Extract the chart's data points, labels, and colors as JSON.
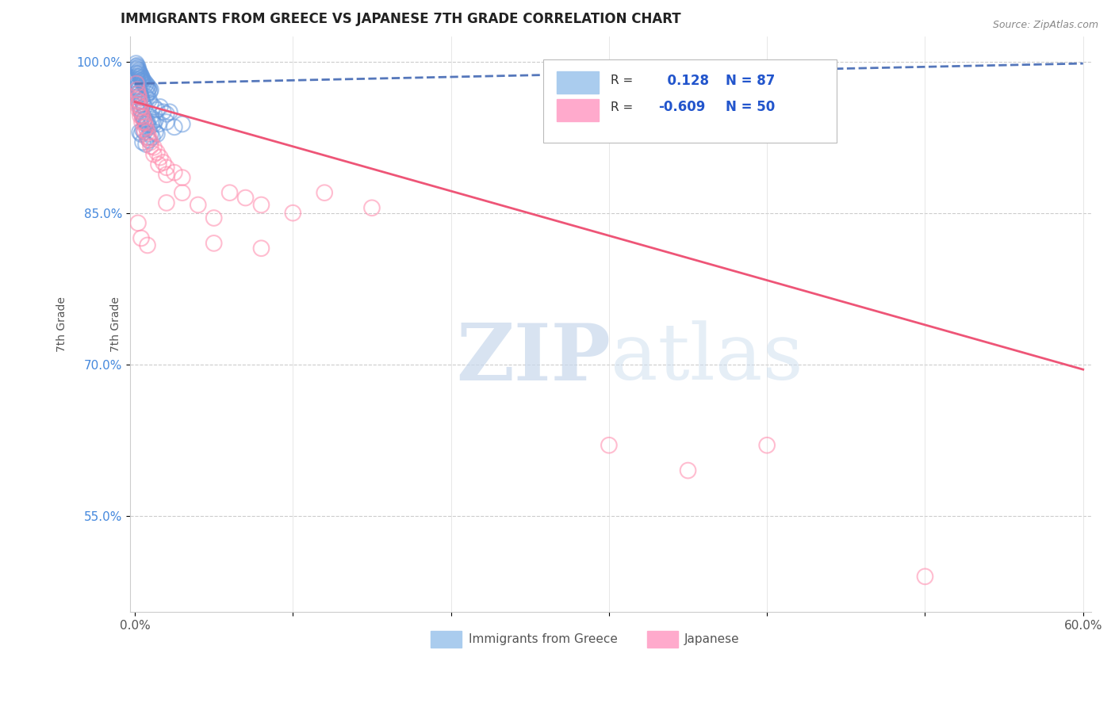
{
  "title": "IMMIGRANTS FROM GREECE VS JAPANESE 7TH GRADE CORRELATION CHART",
  "source": "Source: ZipAtlas.com",
  "ylabel": "7th Grade",
  "legend_label1": "Immigrants from Greece",
  "legend_label2": "Japanese",
  "R1": 0.128,
  "N1": 87,
  "R2": -0.609,
  "N2": 50,
  "xlim": [
    -0.003,
    0.605
  ],
  "ylim": [
    0.455,
    1.025
  ],
  "xtick_labels": [
    "0.0%",
    "",
    "",
    "",
    "",
    "",
    "60.0%"
  ],
  "xtick_vals": [
    0.0,
    0.1,
    0.2,
    0.3,
    0.4,
    0.5,
    0.6
  ],
  "ytick_labels": [
    "55.0%",
    "70.0%",
    "85.0%",
    "100.0%"
  ],
  "ytick_vals": [
    0.55,
    0.7,
    0.85,
    1.0
  ],
  "color_blue_line": "#5577BB",
  "color_pink_line": "#EE5577",
  "color_blue_scatter": "#6699DD",
  "color_pink_scatter": "#FF88AA",
  "trendline1_x": [
    0.0,
    0.6
  ],
  "trendline1_y": [
    0.978,
    0.998
  ],
  "trendline2_x": [
    0.0,
    0.6
  ],
  "trendline2_y": [
    0.96,
    0.695
  ],
  "watermark_zip": "ZIP",
  "watermark_atlas": "atlas",
  "blue_points": [
    [
      0.0008,
      0.998
    ],
    [
      0.001,
      0.995
    ],
    [
      0.0012,
      0.993
    ],
    [
      0.0015,
      0.996
    ],
    [
      0.0018,
      0.992
    ],
    [
      0.002,
      0.994
    ],
    [
      0.0022,
      0.99
    ],
    [
      0.0025,
      0.991
    ],
    [
      0.0028,
      0.988
    ],
    [
      0.003,
      0.989
    ],
    [
      0.0032,
      0.985
    ],
    [
      0.0035,
      0.987
    ],
    [
      0.0038,
      0.983
    ],
    [
      0.004,
      0.986
    ],
    [
      0.0042,
      0.981
    ],
    [
      0.0045,
      0.984
    ],
    [
      0.0048,
      0.98
    ],
    [
      0.005,
      0.982
    ],
    [
      0.0055,
      0.978
    ],
    [
      0.006,
      0.98
    ],
    [
      0.0065,
      0.976
    ],
    [
      0.007,
      0.978
    ],
    [
      0.0075,
      0.974
    ],
    [
      0.008,
      0.976
    ],
    [
      0.0085,
      0.972
    ],
    [
      0.009,
      0.974
    ],
    [
      0.0095,
      0.97
    ],
    [
      0.01,
      0.972
    ],
    [
      0.001,
      0.988
    ],
    [
      0.0013,
      0.985
    ],
    [
      0.0016,
      0.982
    ],
    [
      0.0019,
      0.979
    ],
    [
      0.0023,
      0.976
    ],
    [
      0.0027,
      0.973
    ],
    [
      0.0031,
      0.97
    ],
    [
      0.0036,
      0.967
    ],
    [
      0.0041,
      0.964
    ],
    [
      0.0047,
      0.961
    ],
    [
      0.0053,
      0.958
    ],
    [
      0.006,
      0.955
    ],
    [
      0.007,
      0.965
    ],
    [
      0.008,
      0.968
    ],
    [
      0.009,
      0.962
    ],
    [
      0.01,
      0.958
    ],
    [
      0.012,
      0.955
    ],
    [
      0.014,
      0.952
    ],
    [
      0.016,
      0.955
    ],
    [
      0.018,
      0.95
    ],
    [
      0.02,
      0.948
    ],
    [
      0.022,
      0.95
    ],
    [
      0.005,
      0.945
    ],
    [
      0.006,
      0.942
    ],
    [
      0.007,
      0.938
    ],
    [
      0.008,
      0.94
    ],
    [
      0.01,
      0.945
    ],
    [
      0.012,
      0.938
    ],
    [
      0.0015,
      0.975
    ],
    [
      0.0017,
      0.972
    ],
    [
      0.0019,
      0.968
    ],
    [
      0.0021,
      0.965
    ],
    [
      0.0025,
      0.96
    ],
    [
      0.003,
      0.957
    ],
    [
      0.0035,
      0.953
    ],
    [
      0.004,
      0.95
    ],
    [
      0.005,
      0.946
    ],
    [
      0.006,
      0.943
    ],
    [
      0.007,
      0.94
    ],
    [
      0.008,
      0.938
    ],
    [
      0.009,
      0.935
    ],
    [
      0.011,
      0.94
    ],
    [
      0.013,
      0.942
    ],
    [
      0.015,
      0.938
    ],
    [
      0.003,
      0.93
    ],
    [
      0.004,
      0.928
    ],
    [
      0.005,
      0.932
    ],
    [
      0.006,
      0.93
    ],
    [
      0.008,
      0.925
    ],
    [
      0.01,
      0.928
    ],
    [
      0.013,
      0.93
    ],
    [
      0.005,
      0.92
    ],
    [
      0.007,
      0.918
    ],
    [
      0.009,
      0.922
    ],
    [
      0.011,
      0.925
    ],
    [
      0.014,
      0.928
    ],
    [
      0.02,
      0.94
    ],
    [
      0.025,
      0.935
    ],
    [
      0.03,
      0.938
    ]
  ],
  "pink_points": [
    [
      0.001,
      0.978
    ],
    [
      0.0015,
      0.972
    ],
    [
      0.002,
      0.968
    ],
    [
      0.0025,
      0.965
    ],
    [
      0.003,
      0.96
    ],
    [
      0.0035,
      0.955
    ],
    [
      0.004,
      0.95
    ],
    [
      0.005,
      0.945
    ],
    [
      0.006,
      0.94
    ],
    [
      0.007,
      0.935
    ],
    [
      0.008,
      0.93
    ],
    [
      0.009,
      0.925
    ],
    [
      0.01,
      0.92
    ],
    [
      0.012,
      0.915
    ],
    [
      0.014,
      0.91
    ],
    [
      0.016,
      0.905
    ],
    [
      0.018,
      0.9
    ],
    [
      0.02,
      0.895
    ],
    [
      0.025,
      0.89
    ],
    [
      0.03,
      0.885
    ],
    [
      0.0012,
      0.962
    ],
    [
      0.0018,
      0.957
    ],
    [
      0.0025,
      0.952
    ],
    [
      0.0035,
      0.946
    ],
    [
      0.0045,
      0.94
    ],
    [
      0.006,
      0.932
    ],
    [
      0.008,
      0.924
    ],
    [
      0.01,
      0.916
    ],
    [
      0.012,
      0.908
    ],
    [
      0.015,
      0.898
    ],
    [
      0.02,
      0.888
    ],
    [
      0.03,
      0.87
    ],
    [
      0.04,
      0.858
    ],
    [
      0.05,
      0.845
    ],
    [
      0.06,
      0.87
    ],
    [
      0.07,
      0.865
    ],
    [
      0.08,
      0.858
    ],
    [
      0.1,
      0.85
    ],
    [
      0.12,
      0.87
    ],
    [
      0.15,
      0.855
    ],
    [
      0.002,
      0.84
    ],
    [
      0.004,
      0.825
    ],
    [
      0.008,
      0.818
    ],
    [
      0.02,
      0.86
    ],
    [
      0.05,
      0.82
    ],
    [
      0.08,
      0.815
    ],
    [
      0.3,
      0.62
    ],
    [
      0.35,
      0.595
    ],
    [
      0.4,
      0.62
    ],
    [
      0.5,
      0.49
    ]
  ]
}
